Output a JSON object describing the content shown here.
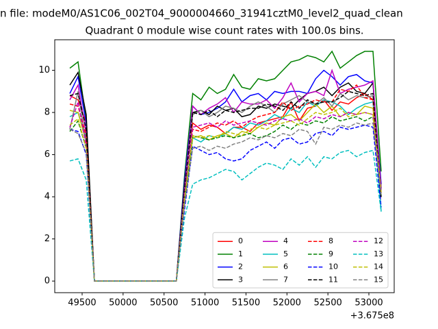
{
  "chart_data": {
    "type": "line",
    "title_file": "n file: modeM0/AS1C06_002T04_9000004660_31941cztM0_level2_quad_clean",
    "title": "Quadrant 0 module wise count rates with 100.0s bins.",
    "x_offset_label": "+3.675e8",
    "x": [
      49350,
      49450,
      49550,
      49650,
      49750,
      49850,
      49950,
      50050,
      50150,
      50250,
      50350,
      50450,
      50550,
      50650,
      50750,
      50850,
      50950,
      51050,
      51150,
      51250,
      51350,
      51450,
      51550,
      51650,
      51750,
      51850,
      51950,
      52050,
      52150,
      52250,
      52350,
      52450,
      52550,
      52650,
      52750,
      52850,
      52950,
      53050,
      53150
    ],
    "xlim": [
      49166,
      53309
    ],
    "xticks": [
      49500,
      50000,
      50500,
      51000,
      51500,
      52000,
      52500,
      53000
    ],
    "ylim": [
      -0.55,
      11.45
    ],
    "yticks": [
      0,
      2,
      4,
      6,
      8,
      10
    ],
    "legend_loc": "lower right",
    "legend_ncol": 4,
    "series": [
      {
        "name": "0",
        "color": "#ff0000",
        "linestyle": "solid",
        "values": [
          8.8,
          8.6,
          7.5,
          0,
          0,
          0,
          0,
          0,
          0,
          0,
          0,
          0,
          0,
          0,
          4.5,
          7.5,
          7.2,
          7.4,
          7.3,
          7.0,
          7.3,
          7.3,
          7.1,
          7.5,
          7.6,
          7.7,
          7.8,
          8.5,
          7.6,
          8.2,
          8.3,
          8.6,
          8.1,
          8.5,
          8.4,
          8.7,
          8.9,
          8.6,
          4.2
        ]
      },
      {
        "name": "1",
        "color": "#008000",
        "linestyle": "solid",
        "values": [
          10.1,
          10.4,
          7.6,
          0,
          0,
          0,
          0,
          0,
          0,
          0,
          0,
          0,
          0,
          0,
          5.0,
          8.9,
          8.6,
          9.2,
          8.9,
          9.1,
          9.8,
          9.2,
          9.1,
          9.6,
          9.5,
          9.6,
          10.0,
          10.4,
          10.5,
          10.7,
          10.6,
          10.4,
          10.9,
          10.1,
          10.4,
          10.7,
          10.9,
          10.9,
          5.2
        ]
      },
      {
        "name": "2",
        "color": "#0000ff",
        "linestyle": "solid",
        "values": [
          8.9,
          9.7,
          7.5,
          0,
          0,
          0,
          0,
          0,
          0,
          0,
          0,
          0,
          0,
          0,
          4.8,
          8.3,
          7.9,
          8.0,
          8.2,
          8.5,
          9.1,
          8.5,
          8.8,
          8.9,
          8.6,
          9.0,
          8.9,
          9.0,
          9.0,
          8.9,
          9.6,
          10.0,
          9.7,
          9.3,
          9.7,
          9.8,
          9.5,
          9.4,
          4.6
        ]
      },
      {
        "name": "3",
        "color": "#000000",
        "linestyle": "solid",
        "values": [
          9.3,
          9.9,
          7.9,
          0,
          0,
          0,
          0,
          0,
          0,
          0,
          0,
          0,
          0,
          0,
          4.6,
          8.0,
          8.1,
          7.9,
          8.3,
          8.1,
          8.2,
          7.8,
          7.9,
          8.3,
          8.2,
          8.4,
          8.3,
          8.2,
          8.6,
          8.9,
          9.0,
          9.2,
          8.8,
          9.2,
          9.4,
          9.0,
          8.9,
          9.4,
          4.4
        ]
      },
      {
        "name": "4",
        "color": "#bf00bf",
        "linestyle": "solid",
        "values": [
          8.6,
          9.3,
          7.0,
          0,
          0,
          0,
          0,
          0,
          0,
          0,
          0,
          0,
          0,
          0,
          4.4,
          8.3,
          7.9,
          8.2,
          8.4,
          8.7,
          8.0,
          8.5,
          8.4,
          8.4,
          8.6,
          8.2,
          8.7,
          9.4,
          8.5,
          8.9,
          9.0,
          8.8,
          10.0,
          8.9,
          9.1,
          9.2,
          9.3,
          9.5,
          4.3
        ]
      },
      {
        "name": "5",
        "color": "#00bfbf",
        "linestyle": "solid",
        "values": [
          7.8,
          8.0,
          6.8,
          0,
          0,
          0,
          0,
          0,
          0,
          0,
          0,
          0,
          0,
          0,
          3.8,
          6.8,
          6.6,
          6.9,
          6.8,
          7.0,
          7.3,
          7.2,
          7.5,
          7.4,
          7.6,
          7.9,
          7.7,
          8.2,
          8.0,
          8.5,
          8.3,
          8.6,
          8.5,
          8.3,
          7.9,
          8.2,
          8.4,
          8.5,
          3.3
        ]
      },
      {
        "name": "6",
        "color": "#bfbf00",
        "linestyle": "solid",
        "values": [
          8.1,
          8.0,
          6.6,
          0,
          0,
          0,
          0,
          0,
          0,
          0,
          0,
          0,
          0,
          0,
          3.9,
          6.8,
          6.9,
          6.7,
          6.9,
          7.0,
          6.8,
          7.1,
          7.0,
          7.3,
          7.5,
          7.4,
          7.8,
          7.9,
          7.6,
          8.0,
          8.4,
          8.0,
          8.3,
          7.8,
          8.0,
          7.9,
          8.3,
          8.2,
          4.1
        ]
      },
      {
        "name": "7",
        "color": "#808080",
        "linestyle": "solid",
        "values": [
          7.2,
          9.0,
          6.5,
          0,
          0,
          0,
          0,
          0,
          0,
          0,
          0,
          0,
          0,
          0,
          4.2,
          7.9,
          8.1,
          7.8,
          8.0,
          8.3,
          8.2,
          8.0,
          8.3,
          8.5,
          8.3,
          8.0,
          8.4,
          8.6,
          8.8,
          8.5,
          8.4,
          8.7,
          8.3,
          8.9,
          8.6,
          8.8,
          8.7,
          8.8,
          4.0
        ]
      },
      {
        "name": "8",
        "color": "#ff0000",
        "linestyle": "dashed",
        "values": [
          8.4,
          8.3,
          6.9,
          0,
          0,
          0,
          0,
          0,
          0,
          0,
          0,
          0,
          0,
          0,
          4.0,
          7.2,
          7.1,
          7.3,
          7.5,
          7.4,
          7.6,
          7.3,
          7.6,
          7.8,
          7.9,
          8.0,
          8.5,
          8.1,
          8.3,
          8.4,
          8.6,
          8.5,
          8.5,
          9.1,
          9.0,
          9.3,
          8.7,
          8.6,
          3.9
        ]
      },
      {
        "name": "9",
        "color": "#008000",
        "linestyle": "dashed",
        "values": [
          7.1,
          7.6,
          6.3,
          0,
          0,
          0,
          0,
          0,
          0,
          0,
          0,
          0,
          0,
          0,
          3.7,
          6.9,
          6.8,
          6.7,
          6.8,
          6.9,
          6.8,
          6.9,
          7.0,
          6.8,
          6.9,
          7.1,
          7.4,
          7.2,
          7.5,
          7.4,
          7.6,
          7.5,
          7.8,
          7.6,
          7.7,
          7.8,
          7.6,
          7.8,
          4.0
        ]
      },
      {
        "name": "10",
        "color": "#0000ff",
        "linestyle": "dashed",
        "values": [
          7.2,
          7.1,
          6.0,
          0,
          0,
          0,
          0,
          0,
          0,
          0,
          0,
          0,
          0,
          0,
          3.4,
          6.4,
          6.2,
          6.0,
          6.1,
          5.8,
          5.7,
          5.8,
          6.2,
          6.4,
          6.6,
          6.3,
          6.7,
          6.8,
          6.5,
          6.6,
          7.0,
          7.1,
          6.9,
          7.3,
          7.2,
          7.3,
          7.4,
          7.3,
          3.5
        ]
      },
      {
        "name": "11",
        "color": "#000000",
        "linestyle": "dashed",
        "values": [
          8.8,
          8.9,
          7.2,
          0,
          0,
          0,
          0,
          0,
          0,
          0,
          0,
          0,
          0,
          0,
          4.3,
          8.0,
          7.9,
          8.1,
          7.8,
          8.1,
          8.0,
          8.1,
          8.2,
          8.2,
          8.4,
          8.3,
          8.1,
          8.5,
          8.2,
          8.6,
          8.4,
          8.5,
          8.5,
          8.7,
          9.0,
          8.9,
          8.8,
          8.9,
          3.9
        ]
      },
      {
        "name": "12",
        "color": "#bf00bf",
        "linestyle": "dashed",
        "values": [
          7.3,
          8.5,
          6.4,
          0,
          0,
          0,
          0,
          0,
          0,
          0,
          0,
          0,
          0,
          0,
          4.1,
          7.3,
          7.4,
          7.5,
          7.3,
          7.6,
          7.4,
          7.5,
          7.6,
          7.5,
          7.4,
          7.6,
          7.7,
          7.6,
          7.7,
          7.5,
          7.8,
          7.7,
          7.9,
          7.8,
          8.0,
          7.9,
          8.0,
          7.9,
          4.2
        ]
      },
      {
        "name": "13",
        "color": "#00bfbf",
        "linestyle": "dashed",
        "values": [
          5.7,
          5.8,
          4.8,
          0,
          0,
          0,
          0,
          0,
          0,
          0,
          0,
          0,
          0,
          0,
          3.0,
          4.6,
          4.8,
          4.9,
          5.1,
          5.3,
          5.2,
          4.8,
          5.1,
          5.4,
          5.6,
          5.5,
          5.3,
          5.8,
          5.5,
          5.9,
          5.4,
          5.9,
          5.8,
          6.1,
          6.2,
          5.9,
          6.1,
          6.2,
          3.3
        ]
      },
      {
        "name": "14",
        "color": "#bfbf00",
        "linestyle": "dashed",
        "values": [
          7.4,
          7.7,
          6.3,
          0,
          0,
          0,
          0,
          0,
          0,
          0,
          0,
          0,
          0,
          0,
          3.9,
          6.9,
          6.8,
          6.9,
          6.8,
          7.1,
          7.0,
          6.9,
          7.2,
          7.3,
          7.2,
          7.4,
          7.5,
          7.6,
          7.4,
          7.7,
          8.0,
          7.9,
          8.0,
          8.2,
          7.8,
          7.9,
          8.0,
          7.9,
          4.2
        ]
      },
      {
        "name": "15",
        "color": "#808080",
        "linestyle": "dashed",
        "values": [
          7.2,
          7.0,
          6.1,
          0,
          0,
          0,
          0,
          0,
          0,
          0,
          0,
          0,
          0,
          0,
          3.6,
          6.3,
          6.4,
          6.2,
          6.4,
          6.3,
          6.5,
          6.6,
          6.8,
          6.7,
          6.9,
          6.8,
          7.0,
          6.9,
          7.2,
          7.1,
          6.5,
          7.3,
          7.2,
          7.4,
          7.3,
          7.5,
          7.4,
          7.5,
          4.1
        ]
      }
    ]
  }
}
